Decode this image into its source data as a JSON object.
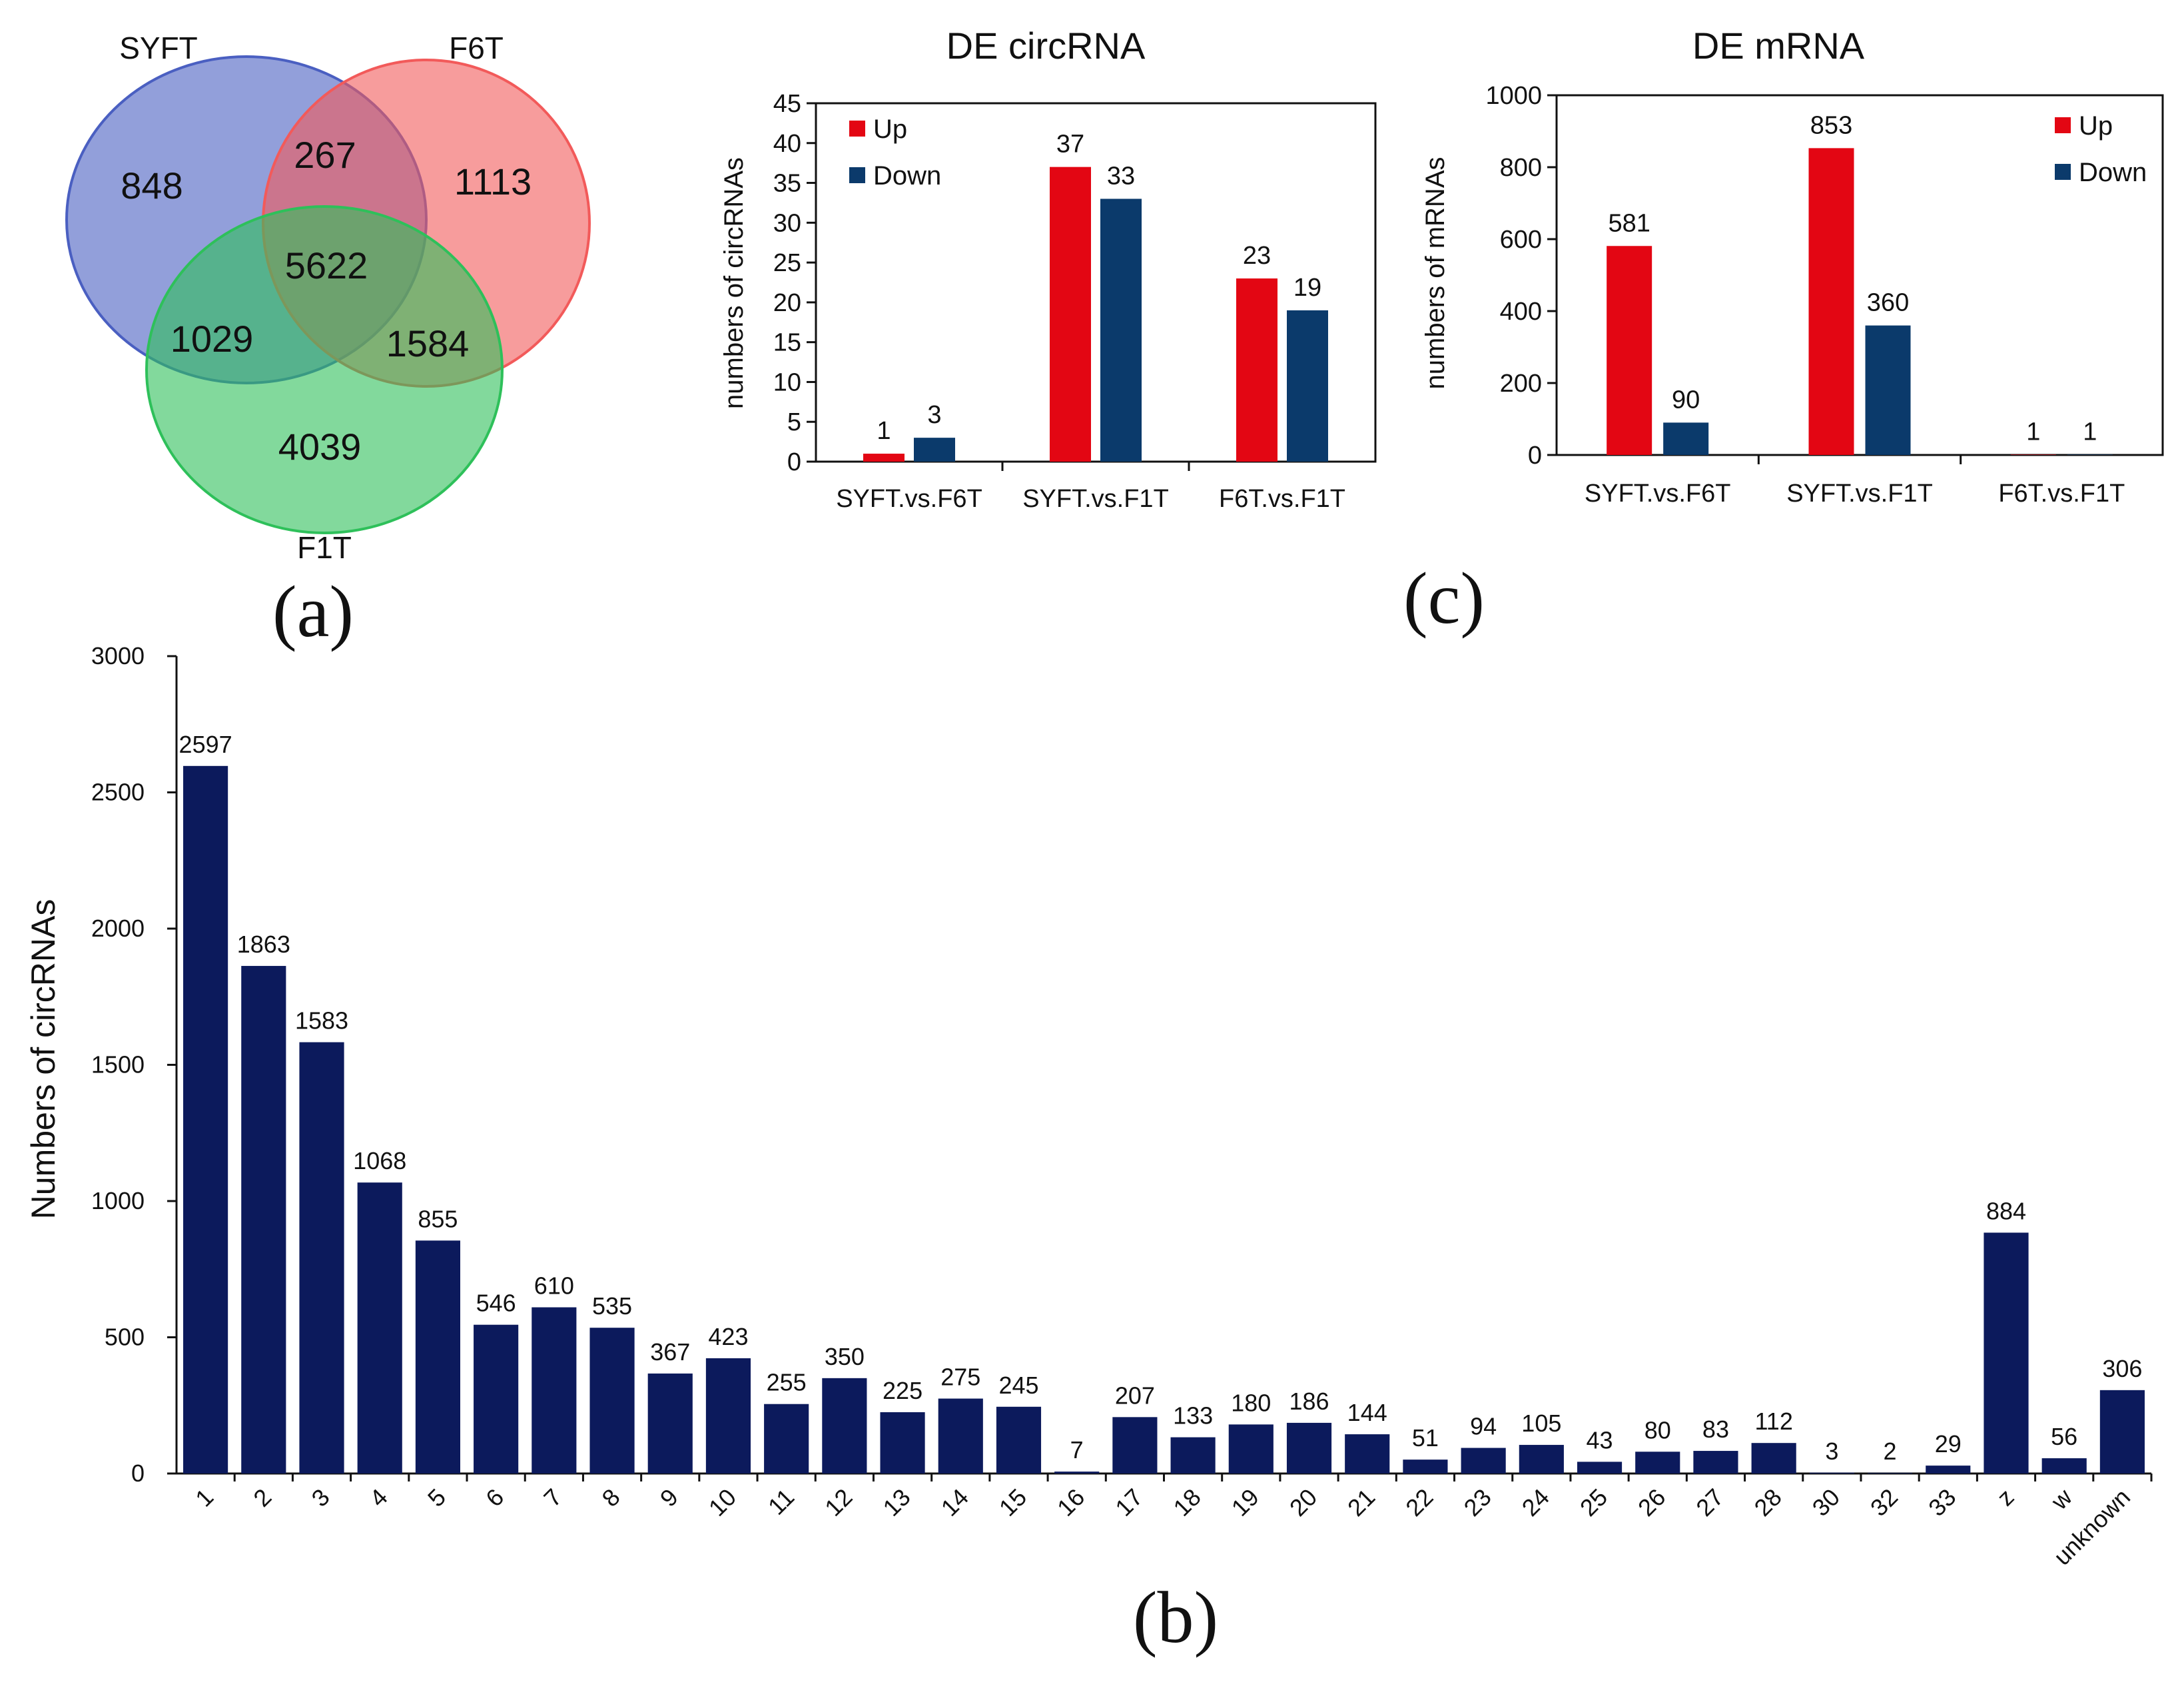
{
  "venn": {
    "sets": [
      {
        "name": "SYFT",
        "color": "#4a5fc1"
      },
      {
        "name": "F6T",
        "color": "#f25a5a"
      },
      {
        "name": "F1T",
        "color": "#2ec05a"
      }
    ],
    "regions": {
      "syft_only": "848",
      "f6t_only": "1113",
      "f1t_only": "4039",
      "syft_f6t": "267",
      "syft_f1t": "1029",
      "f6t_f1t": "1584",
      "all": "5622"
    },
    "panel_label": "(a)"
  },
  "panel_b_label": "(b)",
  "panel_c_label": "(c)",
  "chart_data": [
    {
      "id": "de_circrna",
      "type": "bar",
      "title": "DE circRNA",
      "xlabel": "",
      "ylabel": "numbers of circRNAs",
      "ylim": [
        0,
        45
      ],
      "yticks": [
        0,
        5,
        10,
        15,
        20,
        25,
        30,
        35,
        40,
        45
      ],
      "categories": [
        "SYFT.vs.F6T",
        "SYFT.vs.F1T",
        "F6T.vs.F1T"
      ],
      "series": [
        {
          "name": "Up",
          "color": "#e30613",
          "values": [
            1,
            37,
            23
          ]
        },
        {
          "name": "Down",
          "color": "#0b3a6b",
          "values": [
            3,
            33,
            19
          ]
        }
      ],
      "legend": "top-left"
    },
    {
      "id": "de_mrna",
      "type": "bar",
      "title": "DE mRNA",
      "xlabel": "",
      "ylabel": "numbers of mRNAs",
      "ylim": [
        0,
        1000
      ],
      "yticks": [
        0,
        200,
        400,
        600,
        800,
        1000
      ],
      "categories": [
        "SYFT.vs.F6T",
        "SYFT.vs.F1T",
        "F6T.vs.F1T"
      ],
      "series": [
        {
          "name": "Up",
          "color": "#e30613",
          "values": [
            581,
            853,
            1
          ]
        },
        {
          "name": "Down",
          "color": "#0b3a6b",
          "values": [
            90,
            360,
            1
          ]
        }
      ],
      "legend": "top-right"
    },
    {
      "id": "circrna_chromosomes",
      "type": "bar",
      "title": "",
      "xlabel": "",
      "ylabel": "Numbers of circRNAs",
      "ylim": [
        0,
        3000
      ],
      "yticks": [
        0,
        500,
        1000,
        1500,
        2000,
        2500,
        3000
      ],
      "color": "#0c1a5c",
      "categories": [
        "1",
        "2",
        "3",
        "4",
        "5",
        "6",
        "7",
        "8",
        "9",
        "10",
        "11",
        "12",
        "13",
        "14",
        "15",
        "16",
        "17",
        "18",
        "19",
        "20",
        "21",
        "22",
        "23",
        "24",
        "25",
        "26",
        "27",
        "28",
        "30",
        "32",
        "33",
        "z",
        "w",
        "unknown"
      ],
      "values": [
        2597,
        1863,
        1583,
        1068,
        855,
        546,
        610,
        535,
        367,
        423,
        255,
        350,
        225,
        275,
        245,
        7,
        207,
        133,
        180,
        186,
        144,
        51,
        94,
        105,
        43,
        80,
        83,
        112,
        3,
        2,
        29,
        884,
        56,
        306
      ]
    }
  ]
}
